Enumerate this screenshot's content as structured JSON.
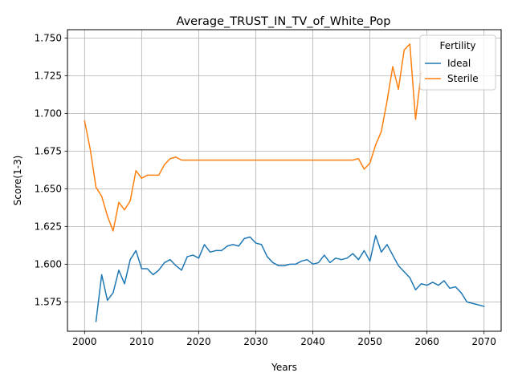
{
  "chart_data": {
    "type": "line",
    "title": "Average_TRUST_IN_TV_of_White_Pop",
    "xlabel": "Years",
    "ylabel": "Score(1-3)",
    "xlim": [
      1997,
      2073
    ],
    "ylim": [
      1.5555,
      1.7555
    ],
    "xticks": [
      2000,
      2010,
      2020,
      2030,
      2040,
      2050,
      2060,
      2070
    ],
    "xtick_labels": [
      "2000",
      "2010",
      "2020",
      "2030",
      "2040",
      "2050",
      "2060",
      "2070"
    ],
    "yticks": [
      1.575,
      1.6,
      1.625,
      1.65,
      1.675,
      1.7,
      1.725,
      1.75
    ],
    "ytick_labels": [
      "1.575",
      "1.600",
      "1.625",
      "1.650",
      "1.675",
      "1.700",
      "1.725",
      "1.750"
    ],
    "grid": true,
    "legend": {
      "title": "Fertility",
      "position": "top-right"
    },
    "series": [
      {
        "name": "Ideal",
        "color": "#1f77b4",
        "x": [
          2002,
          2003,
          2004,
          2005,
          2006,
          2007,
          2008,
          2009,
          2010,
          2011,
          2012,
          2013,
          2014,
          2015,
          2016,
          2017,
          2018,
          2019,
          2020,
          2021,
          2022,
          2023,
          2024,
          2025,
          2026,
          2027,
          2028,
          2029,
          2030,
          2031,
          2032,
          2033,
          2034,
          2035,
          2036,
          2037,
          2038,
          2039,
          2040,
          2041,
          2042,
          2043,
          2044,
          2045,
          2046,
          2047,
          2048,
          2049,
          2050,
          2051,
          2052,
          2053,
          2054,
          2055,
          2056,
          2057,
          2058,
          2059,
          2060,
          2061,
          2062,
          2063,
          2064,
          2065,
          2066,
          2067,
          2068,
          2069,
          2070
        ],
        "y": [
          1.562,
          1.593,
          1.576,
          1.581,
          1.596,
          1.587,
          1.603,
          1.609,
          1.597,
          1.597,
          1.593,
          1.596,
          1.601,
          1.603,
          1.599,
          1.596,
          1.605,
          1.606,
          1.604,
          1.613,
          1.608,
          1.609,
          1.609,
          1.612,
          1.613,
          1.612,
          1.617,
          1.618,
          1.614,
          1.613,
          1.605,
          1.601,
          1.599,
          1.599,
          1.6,
          1.6,
          1.602,
          1.603,
          1.6,
          1.601,
          1.606,
          1.601,
          1.604,
          1.603,
          1.604,
          1.607,
          1.603,
          1.609,
          1.602,
          1.619,
          1.608,
          1.613,
          1.606,
          1.599,
          1.595,
          1.591,
          1.583,
          1.587,
          1.586,
          1.588,
          1.586,
          1.589,
          1.584,
          1.585,
          1.581,
          1.575,
          1.574,
          1.573,
          1.572
        ]
      },
      {
        "name": "Sterile",
        "color": "#ff7f0e",
        "x": [
          2000,
          2001,
          2002,
          2003,
          2004,
          2005,
          2006,
          2007,
          2008,
          2009,
          2010,
          2011,
          2012,
          2013,
          2014,
          2015,
          2016,
          2017,
          2018,
          2019,
          2020,
          2021,
          2022,
          2023,
          2024,
          2025,
          2026,
          2027,
          2028,
          2029,
          2030,
          2031,
          2032,
          2033,
          2034,
          2035,
          2036,
          2037,
          2038,
          2039,
          2040,
          2041,
          2042,
          2043,
          2044,
          2045,
          2046,
          2047,
          2048,
          2049,
          2050,
          2051,
          2052,
          2053,
          2054,
          2055,
          2056,
          2057,
          2058,
          2059
        ],
        "y": [
          1.695,
          1.676,
          1.651,
          1.645,
          1.632,
          1.622,
          1.641,
          1.636,
          1.642,
          1.662,
          1.657,
          1.659,
          1.659,
          1.659,
          1.666,
          1.67,
          1.671,
          1.669,
          1.669,
          1.669,
          1.669,
          1.669,
          1.669,
          1.669,
          1.669,
          1.669,
          1.669,
          1.669,
          1.669,
          1.669,
          1.669,
          1.669,
          1.669,
          1.669,
          1.669,
          1.669,
          1.669,
          1.669,
          1.669,
          1.669,
          1.669,
          1.669,
          1.669,
          1.669,
          1.669,
          1.669,
          1.669,
          1.669,
          1.67,
          1.663,
          1.667,
          1.679,
          1.688,
          1.708,
          1.731,
          1.716,
          1.742,
          1.746,
          1.696,
          1.727
        ]
      }
    ]
  }
}
